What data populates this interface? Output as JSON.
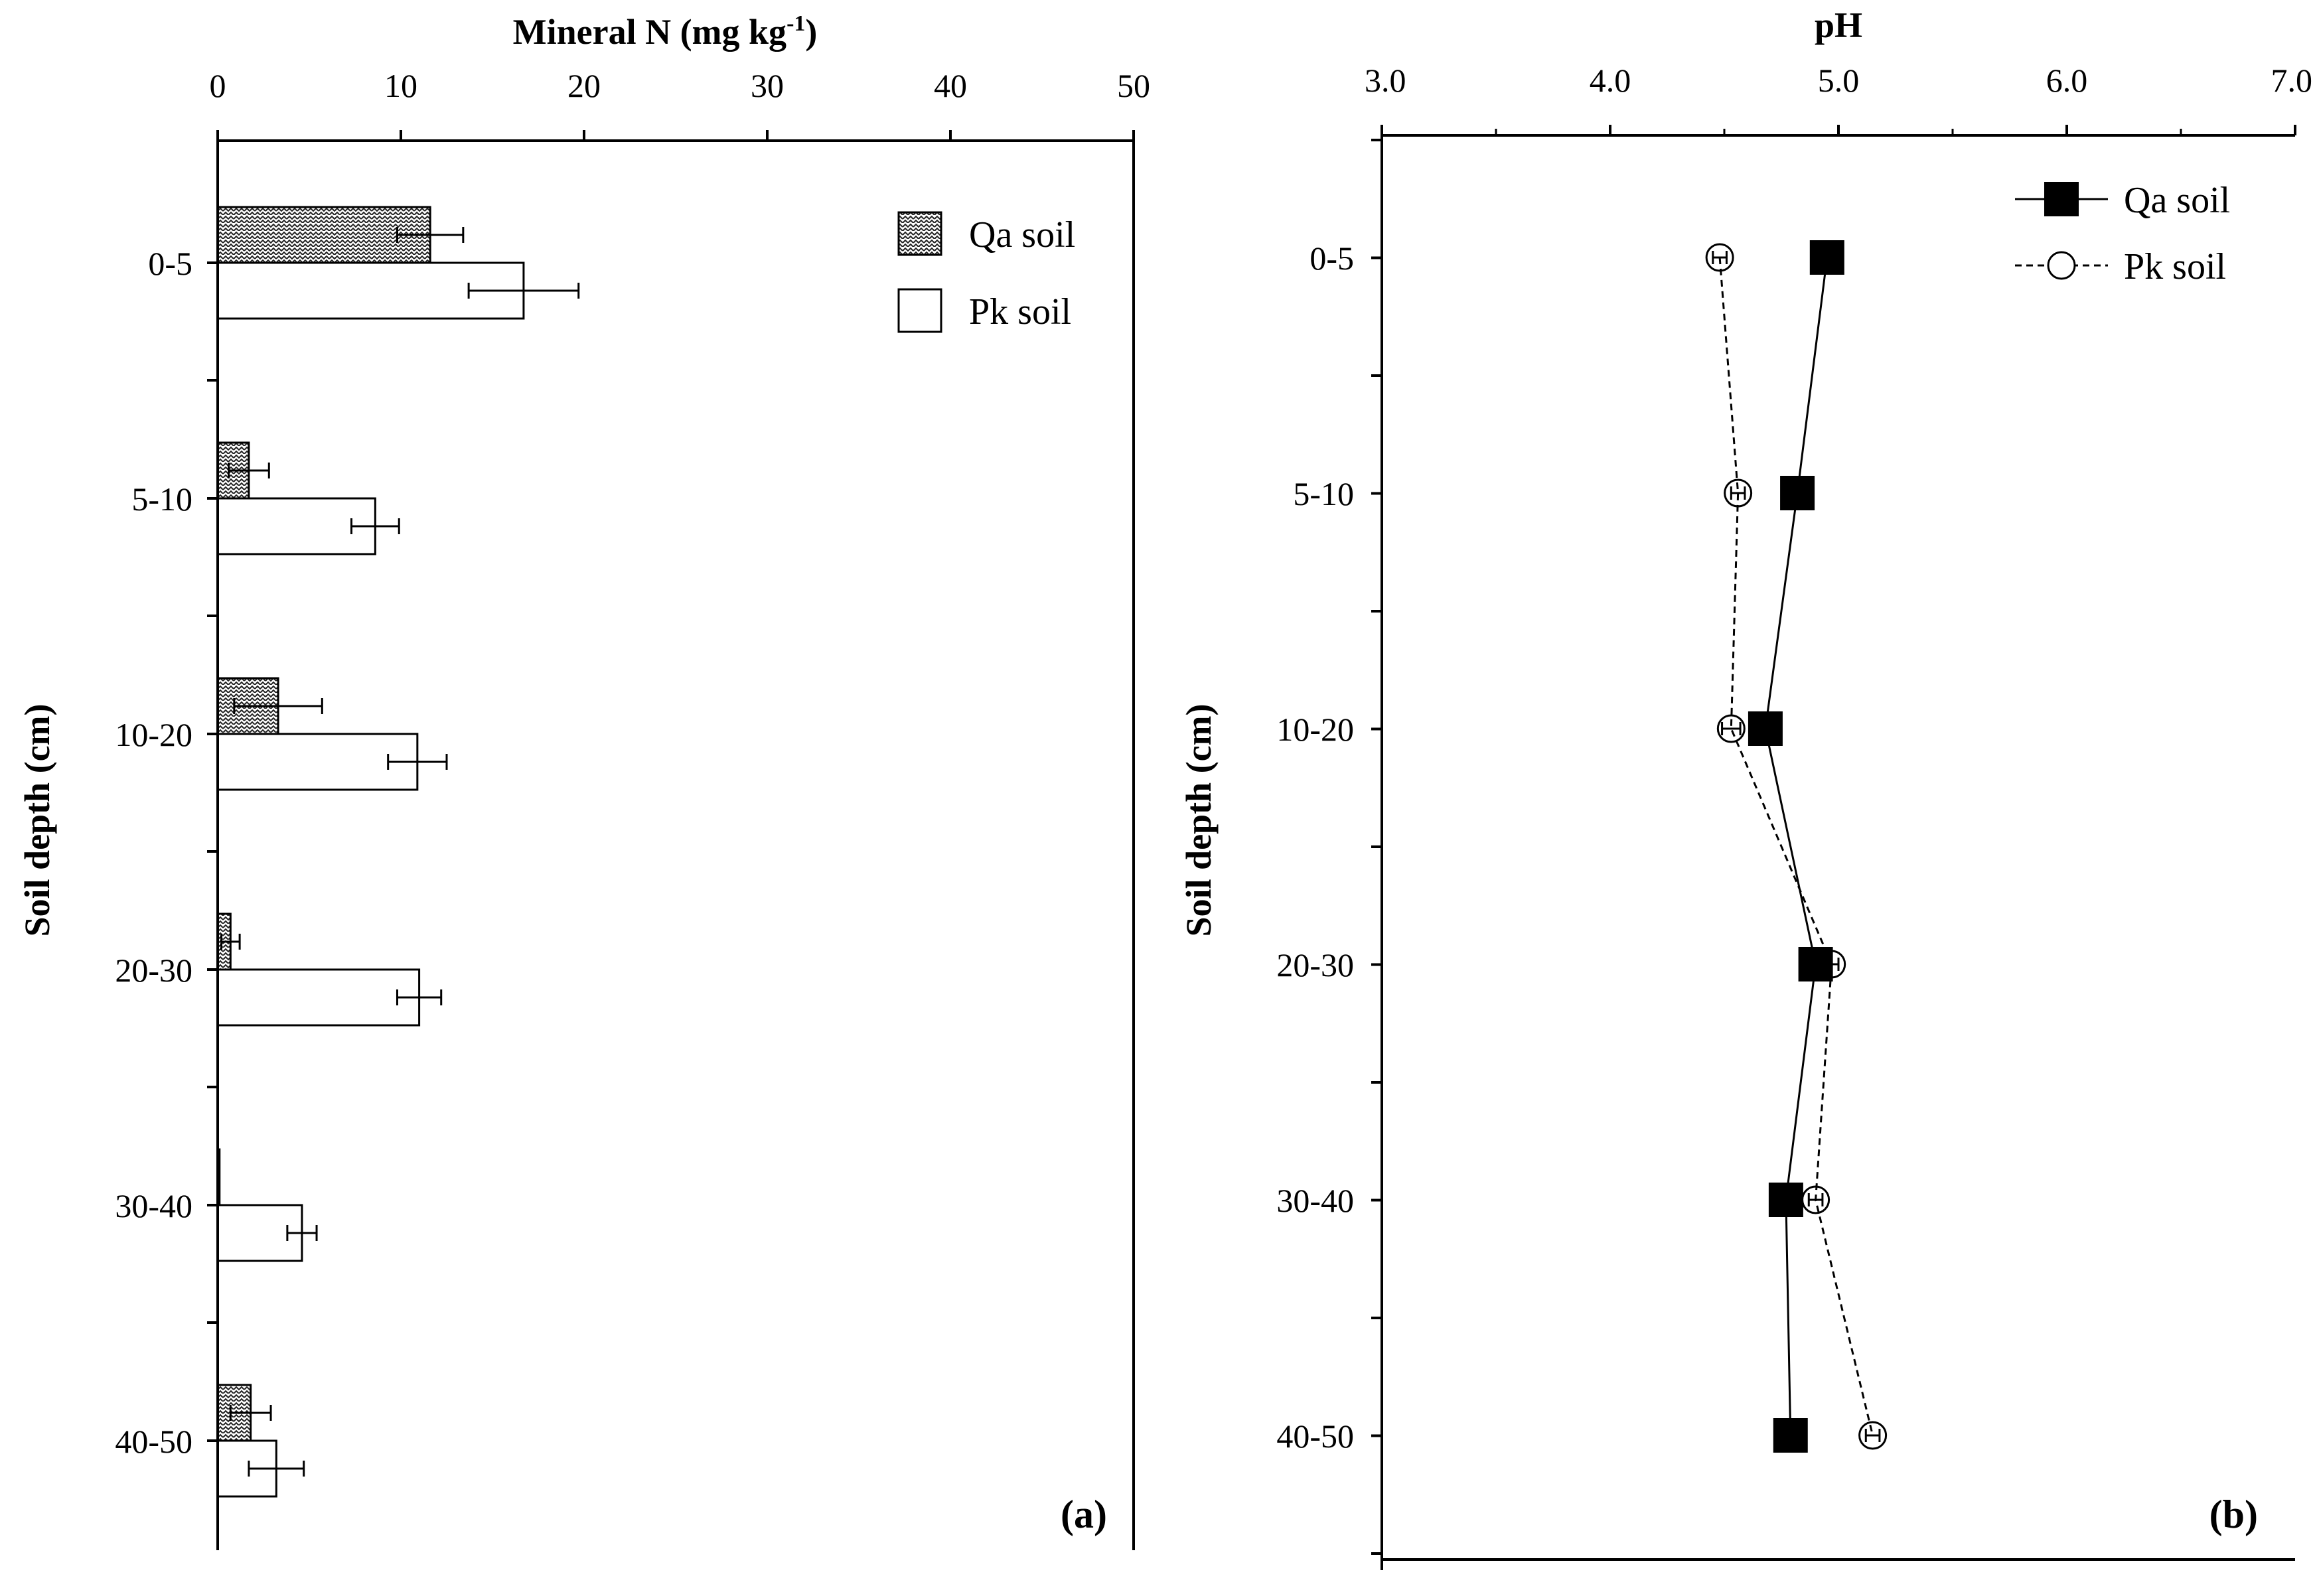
{
  "chart_data": [
    {
      "id": "a",
      "type": "bar",
      "orientation": "horizontal",
      "panel_label": "(a)",
      "title": "",
      "xlabel": {
        "main": "Mineral N (mg kg",
        "sup": "-1",
        "end": ")"
      },
      "ylabel": "Soil depth (cm)",
      "xlim": [
        0,
        50
      ],
      "x_ticks": [
        "0",
        "10",
        "20",
        "30",
        "40",
        "50"
      ],
      "x_tick_values": [
        0,
        10,
        20,
        30,
        40,
        50
      ],
      "categories": [
        "0-5",
        "5-10",
        "10-20",
        "20-30",
        "30-40",
        "40-50"
      ],
      "series": [
        {
          "name": "Qa soil",
          "pattern": "zigzag",
          "values": [
            11.6,
            1.7,
            3.3,
            0.7,
            0.1,
            1.8
          ],
          "errors": [
            1.8,
            1.1,
            2.4,
            0.5,
            0.0,
            1.1
          ]
        },
        {
          "name": "Pk soil",
          "pattern": "none",
          "values": [
            16.7,
            8.6,
            10.9,
            11.0,
            4.6,
            3.2
          ],
          "errors": [
            3.0,
            1.3,
            1.6,
            1.2,
            0.8,
            1.5
          ]
        }
      ],
      "legend_position": "top-right"
    },
    {
      "id": "b",
      "type": "line",
      "panel_label": "(b)",
      "title": "",
      "xlabel": {
        "main": "pH"
      },
      "ylabel": "Soil depth (cm)",
      "xlim": [
        3.0,
        7.0
      ],
      "x_ticks": [
        "3.0",
        "4.0",
        "5.0",
        "6.0",
        "7.0"
      ],
      "x_tick_values": [
        3.0,
        4.0,
        5.0,
        6.0,
        7.0
      ],
      "categories": [
        "0-5",
        "5-10",
        "10-20",
        "20-30",
        "30-40",
        "40-50"
      ],
      "series": [
        {
          "name": "Qa soil",
          "marker": "filled-square",
          "line": "solid",
          "values": [
            4.95,
            4.82,
            4.68,
            4.9,
            4.77,
            4.79
          ],
          "errors": [
            0.02,
            0.02,
            0.03,
            0.03,
            0.02,
            0.02
          ]
        },
        {
          "name": "Pk soil",
          "marker": "open-circle",
          "line": "dashed",
          "values": [
            4.48,
            4.56,
            4.53,
            4.97,
            4.9,
            5.15
          ],
          "errors": [
            0.03,
            0.03,
            0.04,
            0.03,
            0.03,
            0.03
          ]
        }
      ],
      "legend_position": "top-right"
    }
  ]
}
